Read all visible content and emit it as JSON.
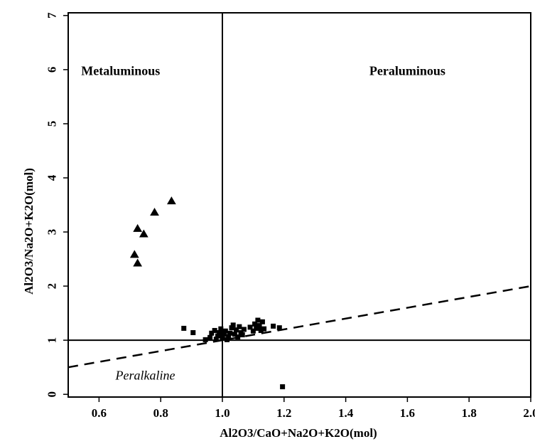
{
  "chart_data": {
    "type": "scatter",
    "xlabel": "Al2O3/CaO+Na2O+K2O(mol)",
    "ylabel": "Al2O3/Na2O+K2O(mol)",
    "xlim": [
      0.5,
      2.0
    ],
    "ylim": [
      -0.05,
      7.05
    ],
    "x_ticks": [
      0.6,
      0.8,
      1.0,
      1.2,
      1.4,
      1.6,
      1.8,
      2.0
    ],
    "x_tick_labels": [
      "0.6",
      "0.8",
      "1.0",
      "1.2",
      "1.4",
      "1.6",
      "1.8",
      "2.0"
    ],
    "y_ticks": [
      0,
      1,
      2,
      3,
      4,
      5,
      6,
      7
    ],
    "y_tick_labels": [
      "0",
      "1",
      "2",
      "3",
      "4",
      "5",
      "6",
      "7"
    ],
    "grid": false,
    "regions": [
      {
        "label": "Metaluminous",
        "x": 0.67,
        "y": 5.9,
        "style": "bold"
      },
      {
        "label": "Peraluminous",
        "x": 1.6,
        "y": 5.9,
        "style": "bold"
      },
      {
        "label": "Peralkaline",
        "x": 0.75,
        "y": 0.27,
        "style": "italic"
      }
    ],
    "reference_lines": [
      {
        "kind": "vertical",
        "x": 1.0,
        "style": "solid"
      },
      {
        "kind": "horizontal",
        "y": 1.0,
        "style": "solid"
      },
      {
        "kind": "segment",
        "from": [
          0.5,
          0.5
        ],
        "to": [
          2.0,
          2.0
        ],
        "style": "dashed"
      }
    ],
    "series": [
      {
        "marker": "triangle",
        "points": [
          [
            0.715,
            2.58
          ],
          [
            0.725,
            2.42
          ],
          [
            0.725,
            3.06
          ],
          [
            0.745,
            2.96
          ],
          [
            0.78,
            3.36
          ],
          [
            0.835,
            3.57
          ]
        ]
      },
      {
        "marker": "square",
        "points": [
          [
            0.875,
            1.22
          ],
          [
            0.905,
            1.14
          ],
          [
            0.945,
            1.01
          ],
          [
            0.96,
            1.05
          ],
          [
            0.965,
            1.13
          ],
          [
            0.975,
            1.18
          ],
          [
            0.98,
            1.02
          ],
          [
            0.985,
            1.08
          ],
          [
            0.99,
            1.14
          ],
          [
            0.995,
            1.21
          ],
          [
            1.0,
            1.05
          ],
          [
            1.005,
            1.11
          ],
          [
            1.01,
            1.17
          ],
          [
            1.015,
            1.01
          ],
          [
            1.02,
            1.07
          ],
          [
            1.025,
            1.13
          ],
          [
            1.03,
            1.23
          ],
          [
            1.035,
            1.28
          ],
          [
            1.04,
            1.11
          ],
          [
            1.045,
            1.19
          ],
          [
            1.05,
            1.06
          ],
          [
            1.055,
            1.25
          ],
          [
            1.06,
            1.14
          ],
          [
            1.065,
            1.1
          ],
          [
            1.07,
            1.2
          ],
          [
            1.09,
            1.24
          ],
          [
            1.1,
            1.17
          ],
          [
            1.105,
            1.3
          ],
          [
            1.11,
            1.22
          ],
          [
            1.115,
            1.37
          ],
          [
            1.12,
            1.27
          ],
          [
            1.125,
            1.18
          ],
          [
            1.13,
            1.34
          ],
          [
            1.135,
            1.21
          ],
          [
            1.165,
            1.26
          ],
          [
            1.185,
            1.23
          ],
          [
            1.195,
            0.14
          ]
        ]
      }
    ]
  }
}
